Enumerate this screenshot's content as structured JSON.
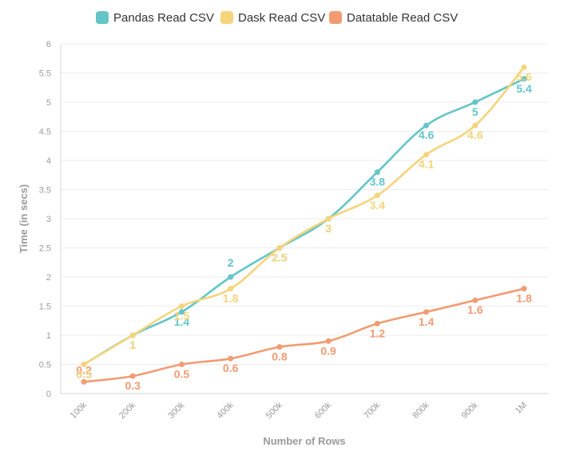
{
  "chart_data": {
    "type": "line",
    "xlabel": "Number of Rows",
    "ylabel": "Time (in secs)",
    "categories": [
      "100k",
      "200k",
      "300k",
      "400k",
      "500k",
      "600k",
      "700k",
      "800k",
      "900k",
      "1M"
    ],
    "ylim": [
      0,
      6
    ],
    "yticks": [
      "0",
      "0.5",
      "1",
      "1.5",
      "2",
      "2.5",
      "3",
      "3.5",
      "4",
      "4.5",
      "5",
      "5.5",
      "6"
    ],
    "grid": true,
    "legend_position": "top",
    "series": [
      {
        "name": "Pandas Read CSV",
        "color": "#63c5c8",
        "values": [
          0.5,
          1,
          1.4,
          2,
          2.5,
          3,
          3.8,
          4.6,
          5,
          5.4
        ],
        "labels": [
          "0.5",
          "1",
          "1.4",
          "2",
          "2.5",
          "3",
          "3.8",
          "4.6",
          "5",
          "5.4"
        ]
      },
      {
        "name": "Dask Read CSV",
        "color": "#f5d47b",
        "values": [
          0.5,
          1,
          1.5,
          1.8,
          2.5,
          3,
          3.4,
          4.1,
          4.6,
          5.6
        ],
        "labels": [
          "0.5",
          "1",
          "1.5",
          "1.8",
          "2.5",
          "3",
          "3.4",
          "4.1",
          "4.6",
          "5.6"
        ]
      },
      {
        "name": "Datatable Read CSV",
        "color": "#f29b72",
        "values": [
          0.2,
          0.3,
          0.5,
          0.6,
          0.8,
          0.9,
          1.2,
          1.4,
          1.6,
          1.8
        ],
        "labels": [
          "0.2",
          "0.3",
          "0.5",
          "0.6",
          "0.8",
          "0.9",
          "1.2",
          "1.4",
          "1.6",
          "1.8"
        ]
      }
    ]
  }
}
